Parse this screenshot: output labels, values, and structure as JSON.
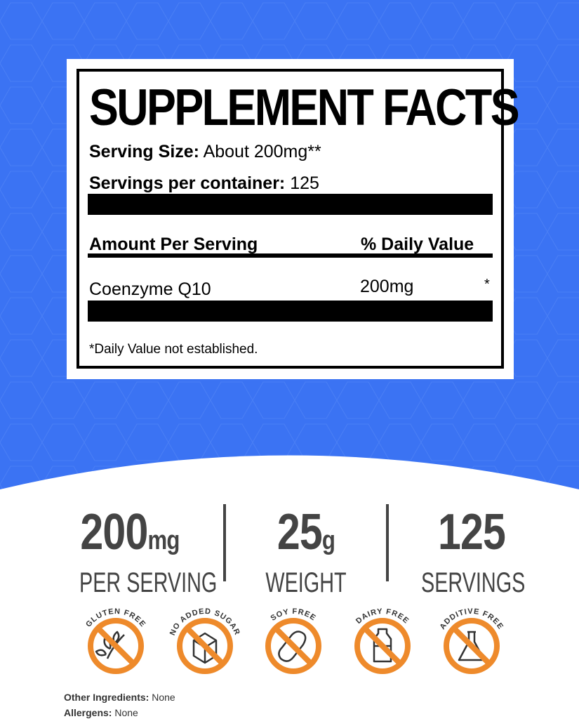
{
  "colors": {
    "background_blue": "#3b73f3",
    "accent_orange": "#ee8a2b",
    "text_dark": "#444444"
  },
  "facts": {
    "title": "SUPPLEMENT FACTS",
    "serving_size_label": "Serving Size:",
    "serving_size_value": " About 200mg**",
    "servings_label": "Servings per container:",
    "servings_value": " 125",
    "amount_header": "Amount Per Serving",
    "dv_header": "% Daily Value",
    "ingredient": "Coenzyme Q10",
    "ingredient_amount": "200mg",
    "ingredient_dv": "*",
    "footnote": "*Daily Value not established."
  },
  "stats": [
    {
      "value": "200",
      "unit": "mg",
      "label": "PER SERVING"
    },
    {
      "value": "25",
      "unit": "g",
      "label": "WEIGHT"
    },
    {
      "value": "125",
      "unit": "",
      "label": "SERVINGS"
    }
  ],
  "badges": [
    {
      "label": "GLUTEN FREE",
      "icon": "wheat-icon"
    },
    {
      "label": "NO ADDED SUGAR",
      "icon": "sugar-cube-icon"
    },
    {
      "label": "SOY FREE",
      "icon": "soybean-icon"
    },
    {
      "label": "DAIRY FREE",
      "icon": "milk-bottle-icon"
    },
    {
      "label": "ADDITIVE FREE",
      "icon": "flask-icon"
    }
  ],
  "footer": {
    "other_label": "Other Ingredients:",
    "other_value": " None",
    "allergens_label": "Allergens:",
    "allergens_value": " None"
  }
}
